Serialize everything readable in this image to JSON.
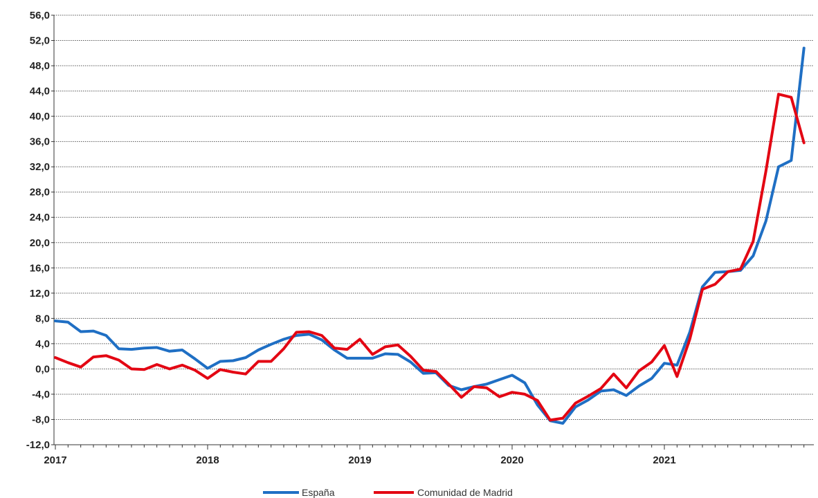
{
  "chart_data": {
    "type": "line",
    "x_labels": [
      "2017",
      "2018",
      "2019",
      "2020",
      "2021"
    ],
    "x_start_year": 2017,
    "ylim": [
      -12,
      56
    ],
    "y_ticks": [
      56,
      52,
      48,
      44,
      40,
      36,
      32,
      28,
      24,
      20,
      16,
      12,
      8,
      4,
      0,
      -4,
      -8,
      -12
    ],
    "y_tick_labels": [
      "56,0",
      "52,0",
      "48,0",
      "44,0",
      "40,0",
      "36,0",
      "32,0",
      "28,0",
      "24,0",
      "20,0",
      "16,0",
      "12,0",
      "8,0",
      "4,0",
      "0,0",
      "-4,0",
      "-8,0",
      "-12,0"
    ],
    "grid": true,
    "legend_position": "bottom",
    "series": [
      {
        "name": "España",
        "color": "#1f6fc4",
        "values": [
          7.6,
          7.4,
          5.9,
          6.0,
          5.3,
          3.2,
          3.1,
          3.3,
          3.4,
          2.8,
          3.0,
          1.6,
          0.1,
          1.2,
          1.3,
          1.8,
          3.0,
          3.9,
          4.7,
          5.3,
          5.5,
          4.6,
          3.0,
          1.7,
          1.7,
          1.7,
          2.4,
          2.3,
          1.1,
          -0.7,
          -0.6,
          -2.6,
          -3.3,
          -2.8,
          -2.4,
          -1.7,
          -1.0,
          -2.2,
          -5.7,
          -8.2,
          -8.6,
          -6.0,
          -4.9,
          -3.5,
          -3.3,
          -4.2,
          -2.7,
          -1.5,
          0.9,
          0.6,
          5.8,
          13.0,
          15.3,
          15.4,
          15.6,
          17.9,
          23.4,
          32.0,
          33.0,
          50.8
        ]
      },
      {
        "name": "Comunidad de Madrid",
        "color": "#e30613",
        "values": [
          1.8,
          1.0,
          0.3,
          1.9,
          2.1,
          1.4,
          0.0,
          -0.1,
          0.7,
          0.0,
          0.6,
          -0.2,
          -1.5,
          -0.1,
          -0.5,
          -0.8,
          1.2,
          1.2,
          3.2,
          5.8,
          5.9,
          5.3,
          3.3,
          3.1,
          4.7,
          2.3,
          3.5,
          3.8,
          2.0,
          -0.2,
          -0.4,
          -2.4,
          -4.5,
          -2.8,
          -3.0,
          -4.4,
          -3.7,
          -4.0,
          -5.0,
          -8.1,
          -7.8,
          -5.4,
          -4.3,
          -3.1,
          -0.8,
          -3.0,
          -0.3,
          1.1,
          3.7,
          -1.2,
          4.7,
          12.6,
          13.4,
          15.4,
          15.8,
          20.2,
          31.3,
          43.5,
          43.0,
          35.8
        ]
      }
    ]
  }
}
